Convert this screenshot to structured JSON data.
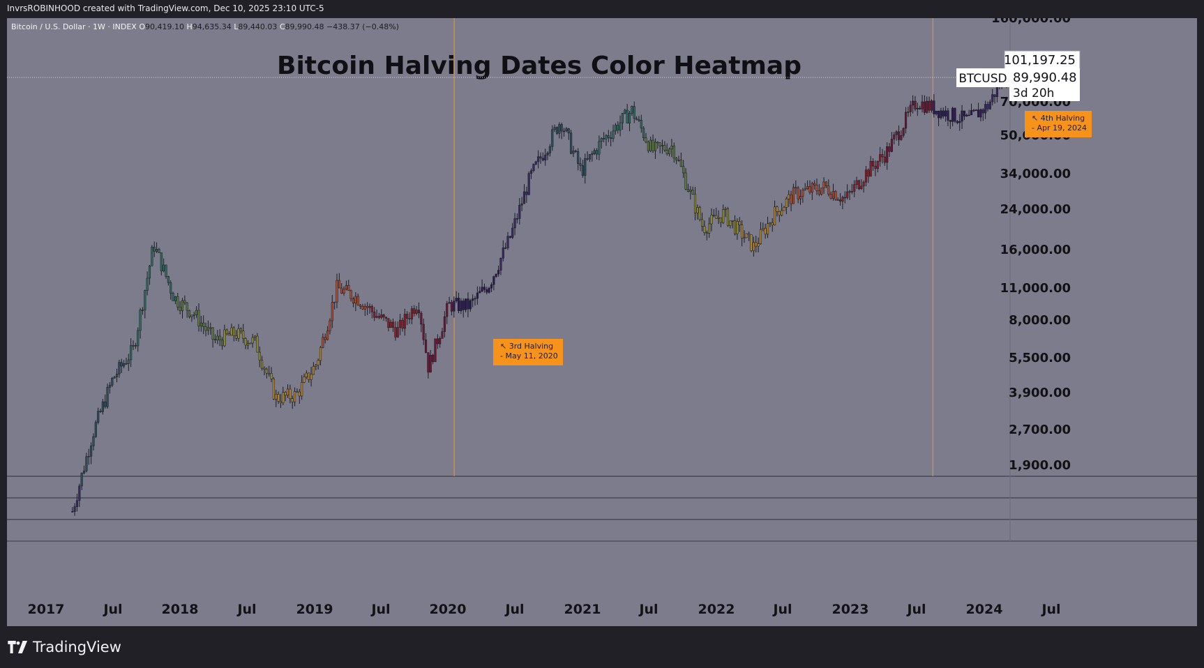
{
  "header": {
    "text": "InvrsROBINHOOD created with TradingView.com, Dec 10, 2025 23:10 UTC-5"
  },
  "footer": {
    "brand": "TradingView"
  },
  "chart_data": {
    "type": "candlestick",
    "title": "Bitcoin Halving Dates Color Heatmap",
    "symbol_line": "Bitcoin / U.S. Dollar · 1W · INDEX",
    "ohlc": {
      "o_label": "O",
      "open": "90,419.10",
      "h_label": "H",
      "high": "94,635.34",
      "l_label": "L",
      "low": "89,440.03",
      "c_label": "C",
      "close": "89,990.48",
      "change": "−438.37 (−0.48%)"
    },
    "x_ticks": [
      "2017",
      "Jul",
      "2018",
      "Jul",
      "2019",
      "Jul",
      "2020",
      "Jul",
      "2021",
      "Jul",
      "2022",
      "Jul",
      "2023",
      "Jul",
      "2024",
      "Jul"
    ],
    "y_ticks": [
      "160,000.00",
      "70,000.00",
      "50,000.00",
      "34,000.00",
      "24,000.00",
      "16,000.00",
      "11,000.00",
      "8,000.00",
      "5,500.00",
      "3,900.00",
      "2,700.00",
      "1,900.00"
    ],
    "y_scale": "log",
    "price_labels": {
      "high_marker": "101,197.25",
      "ticker": "BTCUSD",
      "last_price": "89,990.48",
      "countdown": "3d 20h"
    },
    "annotations": [
      {
        "text": "↖ 3rd Halving",
        "date_text": " - May 11, 2020",
        "date": "2020-05-11"
      },
      {
        "text": "↖ 4th Halving",
        "date_text": " - Apr 19, 2024",
        "date": "2024-04-19"
      }
    ],
    "series": [
      {
        "x": [
          "2017-04",
          "2017-06",
          "2017-08",
          "2017-10",
          "2017-12",
          "2018-02",
          "2018-04",
          "2018-06",
          "2018-08",
          "2018-10",
          "2018-12",
          "2019-02",
          "2019-04",
          "2019-06",
          "2019-08",
          "2019-10",
          "2019-12",
          "2020-02",
          "2020-03",
          "2020-05",
          "2020-07",
          "2020-09",
          "2020-11",
          "2021-01",
          "2021-04",
          "2021-06",
          "2021-08",
          "2021-11",
          "2022-01",
          "2022-03",
          "2022-06",
          "2022-08",
          "2022-11",
          "2023-01",
          "2023-03",
          "2023-06",
          "2023-08",
          "2023-10",
          "2023-12",
          "2024-03",
          "2024-06",
          "2024-08",
          "2024-10",
          "2024-12"
        ],
        "y": [
          1200,
          2600,
          4500,
          6000,
          17000,
          10000,
          8500,
          6500,
          7000,
          6400,
          3700,
          3800,
          5200,
          11000,
          10000,
          8300,
          7200,
          9700,
          5000,
          9300,
          9200,
          11500,
          18000,
          33000,
          58000,
          35000,
          47000,
          64000,
          43000,
          45000,
          20000,
          23000,
          16500,
          23000,
          28000,
          30000,
          26500,
          34500,
          42000,
          70000,
          62000,
          58000,
          67000,
          98000
        ]
      }
    ]
  }
}
